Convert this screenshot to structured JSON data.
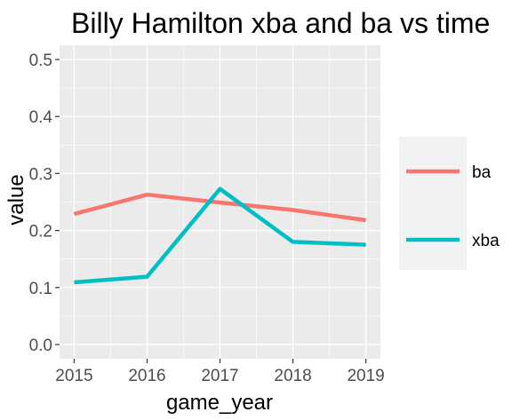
{
  "chart_data": {
    "type": "line",
    "title": "Billy Hamilton xba and ba vs time",
    "xlabel": "game_year",
    "ylabel": "value",
    "x": [
      2015,
      2016,
      2017,
      2018,
      2019
    ],
    "x_tick_labels": [
      "2015",
      "2016",
      "2017",
      "2018",
      "2019"
    ],
    "xlim": [
      2014.8,
      2019.2
    ],
    "ylim": [
      -0.025,
      0.525
    ],
    "y_ticks": [
      0.0,
      0.1,
      0.2,
      0.3,
      0.4,
      0.5
    ],
    "y_tick_labels": [
      "0.0",
      "0.1",
      "0.2",
      "0.3",
      "0.4",
      "0.5"
    ],
    "grid": true,
    "legend_position": "right",
    "series": [
      {
        "name": "ba",
        "color": "#F8766D",
        "values": [
          0.229,
          0.263,
          0.249,
          0.236,
          0.218
        ]
      },
      {
        "name": "xba",
        "color": "#00BFC4",
        "values": [
          0.109,
          0.119,
          0.273,
          0.18,
          0.175
        ]
      }
    ]
  }
}
